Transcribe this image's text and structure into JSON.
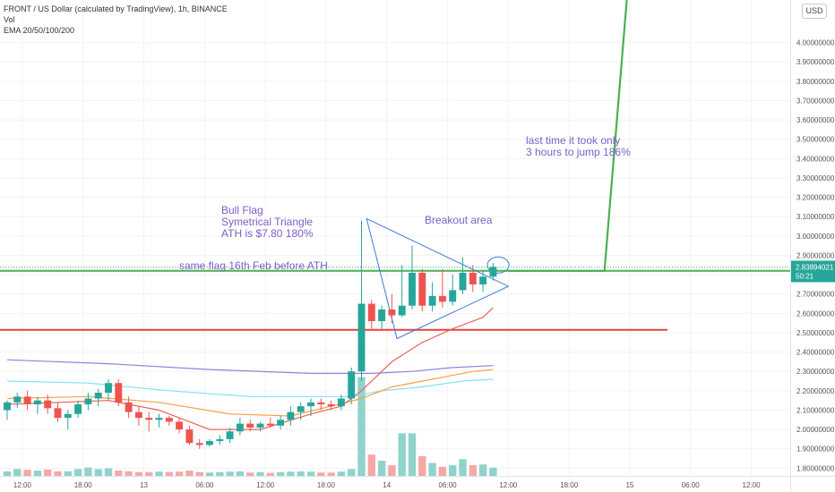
{
  "header": {
    "title": "FRONT / US Dollar (calculated by TradingView), 1h, BINANCE",
    "volume_label": "Vol",
    "ema_label": "EMA 20/50/100/200"
  },
  "currency_button": "USD",
  "price_tag": {
    "value": "2.83894021",
    "countdown": "50:21"
  },
  "annotations": {
    "bull_flag": [
      "Bull Flag",
      "Symetrical Triangle",
      "ATH is $7.80  180%"
    ],
    "same_flag": "same flag 16th Feb before ATH",
    "breakout": "Breakout area",
    "last_time": [
      "last time it took only",
      "3 hours to jump 186%"
    ]
  },
  "colors": {
    "up": "#26a69a",
    "down": "#ef5350",
    "vol_up": "#8fd3cb",
    "vol_down": "#f4a9a7",
    "ema20": "#f0625a",
    "ema50": "#ff9e45",
    "ema100": "#7ee3f0",
    "ema200": "#8c84d8",
    "support": "#e8403a",
    "resistance": "#4caf50",
    "annotation": "#7b5fc7"
  },
  "chart_data": {
    "type": "candlestick",
    "ylim": [
      1.76,
      4.22
    ],
    "y_ticks": [
      "1.80000000",
      "1.90000000",
      "2.00000000",
      "2.10000000",
      "2.20000000",
      "2.30000000",
      "2.40000000",
      "2.50000000",
      "2.60000000",
      "2.70000000",
      "2.80000000",
      "2.90000000",
      "3.00000000",
      "3.10000000",
      "3.20000000",
      "3.30000000",
      "3.40000000",
      "3.50000000",
      "3.60000000",
      "3.70000000",
      "3.80000000",
      "3.90000000",
      "4.00000000"
    ],
    "y_tick_values": [
      1.8,
      1.9,
      2.0,
      2.1,
      2.2,
      2.3,
      2.4,
      2.5,
      2.6,
      2.7,
      2.8,
      2.9,
      3.0,
      3.1,
      3.2,
      3.3,
      3.4,
      3.5,
      3.6,
      3.7,
      3.8,
      3.9,
      4.0
    ],
    "x_tick_labels": [
      "12:00",
      "18:00",
      "13",
      "06:00",
      "12:00",
      "18:00",
      "14",
      "06:00",
      "12:00",
      "18:00",
      "15",
      "06:00",
      "12:00"
    ],
    "x_tick_bars": [
      1.5,
      7.5,
      13.5,
      19.5,
      25.5,
      31.5,
      37.5,
      43.5,
      49.5,
      55.5,
      61.5,
      67.5,
      73.5
    ],
    "candles": [
      {
        "o": 2.1,
        "h": 2.15,
        "l": 2.05,
        "c": 2.14
      },
      {
        "o": 2.14,
        "h": 2.19,
        "l": 2.11,
        "c": 2.17
      },
      {
        "o": 2.17,
        "h": 2.2,
        "l": 2.1,
        "c": 2.13
      },
      {
        "o": 2.13,
        "h": 2.17,
        "l": 2.08,
        "c": 2.15
      },
      {
        "o": 2.15,
        "h": 2.18,
        "l": 2.08,
        "c": 2.11
      },
      {
        "o": 2.11,
        "h": 2.14,
        "l": 2.04,
        "c": 2.06
      },
      {
        "o": 2.06,
        "h": 2.1,
        "l": 2.0,
        "c": 2.08
      },
      {
        "o": 2.08,
        "h": 2.15,
        "l": 2.06,
        "c": 2.13
      },
      {
        "o": 2.13,
        "h": 2.19,
        "l": 2.1,
        "c": 2.16
      },
      {
        "o": 2.16,
        "h": 2.21,
        "l": 2.12,
        "c": 2.19
      },
      {
        "o": 2.19,
        "h": 2.26,
        "l": 2.15,
        "c": 2.24
      },
      {
        "o": 2.24,
        "h": 2.26,
        "l": 2.12,
        "c": 2.14
      },
      {
        "o": 2.14,
        "h": 2.17,
        "l": 2.06,
        "c": 2.09
      },
      {
        "o": 2.09,
        "h": 2.12,
        "l": 2.02,
        "c": 2.06
      },
      {
        "o": 2.06,
        "h": 2.09,
        "l": 1.99,
        "c": 2.05
      },
      {
        "o": 2.05,
        "h": 2.08,
        "l": 2.01,
        "c": 2.06
      },
      {
        "o": 2.06,
        "h": 2.07,
        "l": 2.02,
        "c": 2.04
      },
      {
        "o": 2.04,
        "h": 2.06,
        "l": 1.98,
        "c": 2.0
      },
      {
        "o": 2.0,
        "h": 2.02,
        "l": 1.92,
        "c": 1.93
      },
      {
        "o": 1.93,
        "h": 1.95,
        "l": 1.9,
        "c": 1.92
      },
      {
        "o": 1.92,
        "h": 1.95,
        "l": 1.91,
        "c": 1.94
      },
      {
        "o": 1.94,
        "h": 1.97,
        "l": 1.92,
        "c": 1.95
      },
      {
        "o": 1.95,
        "h": 2.01,
        "l": 1.93,
        "c": 1.99
      },
      {
        "o": 1.99,
        "h": 2.06,
        "l": 1.97,
        "c": 2.03
      },
      {
        "o": 2.03,
        "h": 2.05,
        "l": 1.99,
        "c": 2.01
      },
      {
        "o": 2.01,
        "h": 2.04,
        "l": 1.99,
        "c": 2.03
      },
      {
        "o": 2.03,
        "h": 2.06,
        "l": 2.01,
        "c": 2.02
      },
      {
        "o": 2.02,
        "h": 2.07,
        "l": 2.0,
        "c": 2.05
      },
      {
        "o": 2.05,
        "h": 2.12,
        "l": 2.02,
        "c": 2.09
      },
      {
        "o": 2.09,
        "h": 2.14,
        "l": 2.05,
        "c": 2.12
      },
      {
        "o": 2.12,
        "h": 2.16,
        "l": 2.07,
        "c": 2.14
      },
      {
        "o": 2.14,
        "h": 2.16,
        "l": 2.1,
        "c": 2.13
      },
      {
        "o": 2.13,
        "h": 2.15,
        "l": 2.1,
        "c": 2.12
      },
      {
        "o": 2.12,
        "h": 2.18,
        "l": 2.1,
        "c": 2.16
      },
      {
        "o": 2.16,
        "h": 2.32,
        "l": 2.13,
        "c": 2.3
      },
      {
        "o": 2.3,
        "h": 3.08,
        "l": 2.25,
        "c": 2.65
      },
      {
        "o": 2.65,
        "h": 2.67,
        "l": 2.52,
        "c": 2.56
      },
      {
        "o": 2.56,
        "h": 2.64,
        "l": 2.52,
        "c": 2.62
      },
      {
        "o": 2.62,
        "h": 2.7,
        "l": 2.55,
        "c": 2.59
      },
      {
        "o": 2.59,
        "h": 2.85,
        "l": 2.58,
        "c": 2.64
      },
      {
        "o": 2.64,
        "h": 2.95,
        "l": 2.62,
        "c": 2.81
      },
      {
        "o": 2.81,
        "h": 2.83,
        "l": 2.61,
        "c": 2.64
      },
      {
        "o": 2.64,
        "h": 2.76,
        "l": 2.61,
        "c": 2.69
      },
      {
        "o": 2.69,
        "h": 2.83,
        "l": 2.63,
        "c": 2.66
      },
      {
        "o": 2.66,
        "h": 2.8,
        "l": 2.64,
        "c": 2.72
      },
      {
        "o": 2.72,
        "h": 2.89,
        "l": 2.7,
        "c": 2.81
      },
      {
        "o": 2.81,
        "h": 2.85,
        "l": 2.71,
        "c": 2.75
      },
      {
        "o": 2.75,
        "h": 2.82,
        "l": 2.71,
        "c": 2.79
      },
      {
        "o": 2.79,
        "h": 2.86,
        "l": 2.77,
        "c": 2.84
      }
    ],
    "volumes": [
      0.3,
      0.45,
      0.4,
      0.35,
      0.42,
      0.3,
      0.3,
      0.45,
      0.55,
      0.45,
      0.5,
      0.35,
      0.3,
      0.25,
      0.25,
      0.28,
      0.25,
      0.28,
      0.35,
      0.25,
      0.22,
      0.25,
      0.28,
      0.3,
      0.22,
      0.25,
      0.2,
      0.25,
      0.28,
      0.3,
      0.28,
      0.22,
      0.22,
      0.28,
      0.45,
      6.5,
      1.4,
      1.0,
      0.7,
      2.8,
      2.8,
      1.3,
      0.85,
      0.6,
      0.7,
      1.1,
      0.7,
      0.75,
      0.55
    ],
    "ema20": [
      [
        0,
        2.13
      ],
      [
        10,
        2.15
      ],
      [
        15,
        2.1
      ],
      [
        20,
        2.0
      ],
      [
        25,
        2.0
      ],
      [
        30,
        2.08
      ],
      [
        33,
        2.12
      ],
      [
        35,
        2.2
      ],
      [
        38,
        2.35
      ],
      [
        41,
        2.45
      ],
      [
        44,
        2.52
      ],
      [
        47,
        2.58
      ],
      [
        48,
        2.63
      ]
    ],
    "ema50": [
      [
        0,
        2.16
      ],
      [
        8,
        2.17
      ],
      [
        15,
        2.14
      ],
      [
        22,
        2.08
      ],
      [
        28,
        2.07
      ],
      [
        32,
        2.12
      ],
      [
        35,
        2.16
      ],
      [
        38,
        2.22
      ],
      [
        42,
        2.26
      ],
      [
        46,
        2.3
      ],
      [
        48,
        2.31
      ]
    ],
    "ema100": [
      [
        0,
        2.25
      ],
      [
        8,
        2.24
      ],
      [
        16,
        2.2
      ],
      [
        24,
        2.17
      ],
      [
        30,
        2.17
      ],
      [
        34,
        2.17
      ],
      [
        37,
        2.2
      ],
      [
        41,
        2.22
      ],
      [
        45,
        2.25
      ],
      [
        48,
        2.26
      ]
    ],
    "ema200": [
      [
        0,
        2.36
      ],
      [
        10,
        2.34
      ],
      [
        20,
        2.31
      ],
      [
        30,
        2.29
      ],
      [
        36,
        2.29
      ],
      [
        40,
        2.3
      ],
      [
        44,
        2.32
      ],
      [
        48,
        2.33
      ]
    ],
    "support_level": 2.515,
    "resistance_level": 2.82,
    "triangle": [
      [
        35.5,
        3.09
      ],
      [
        49.5,
        2.74
      ],
      [
        38.5,
        2.47
      ]
    ],
    "breakout_circle": {
      "bar": 48.5,
      "price": 2.85
    },
    "projection": [
      [
        49.5,
        2.82
      ],
      [
        59,
        2.82
      ],
      [
        61.2,
        4.22
      ]
    ]
  }
}
